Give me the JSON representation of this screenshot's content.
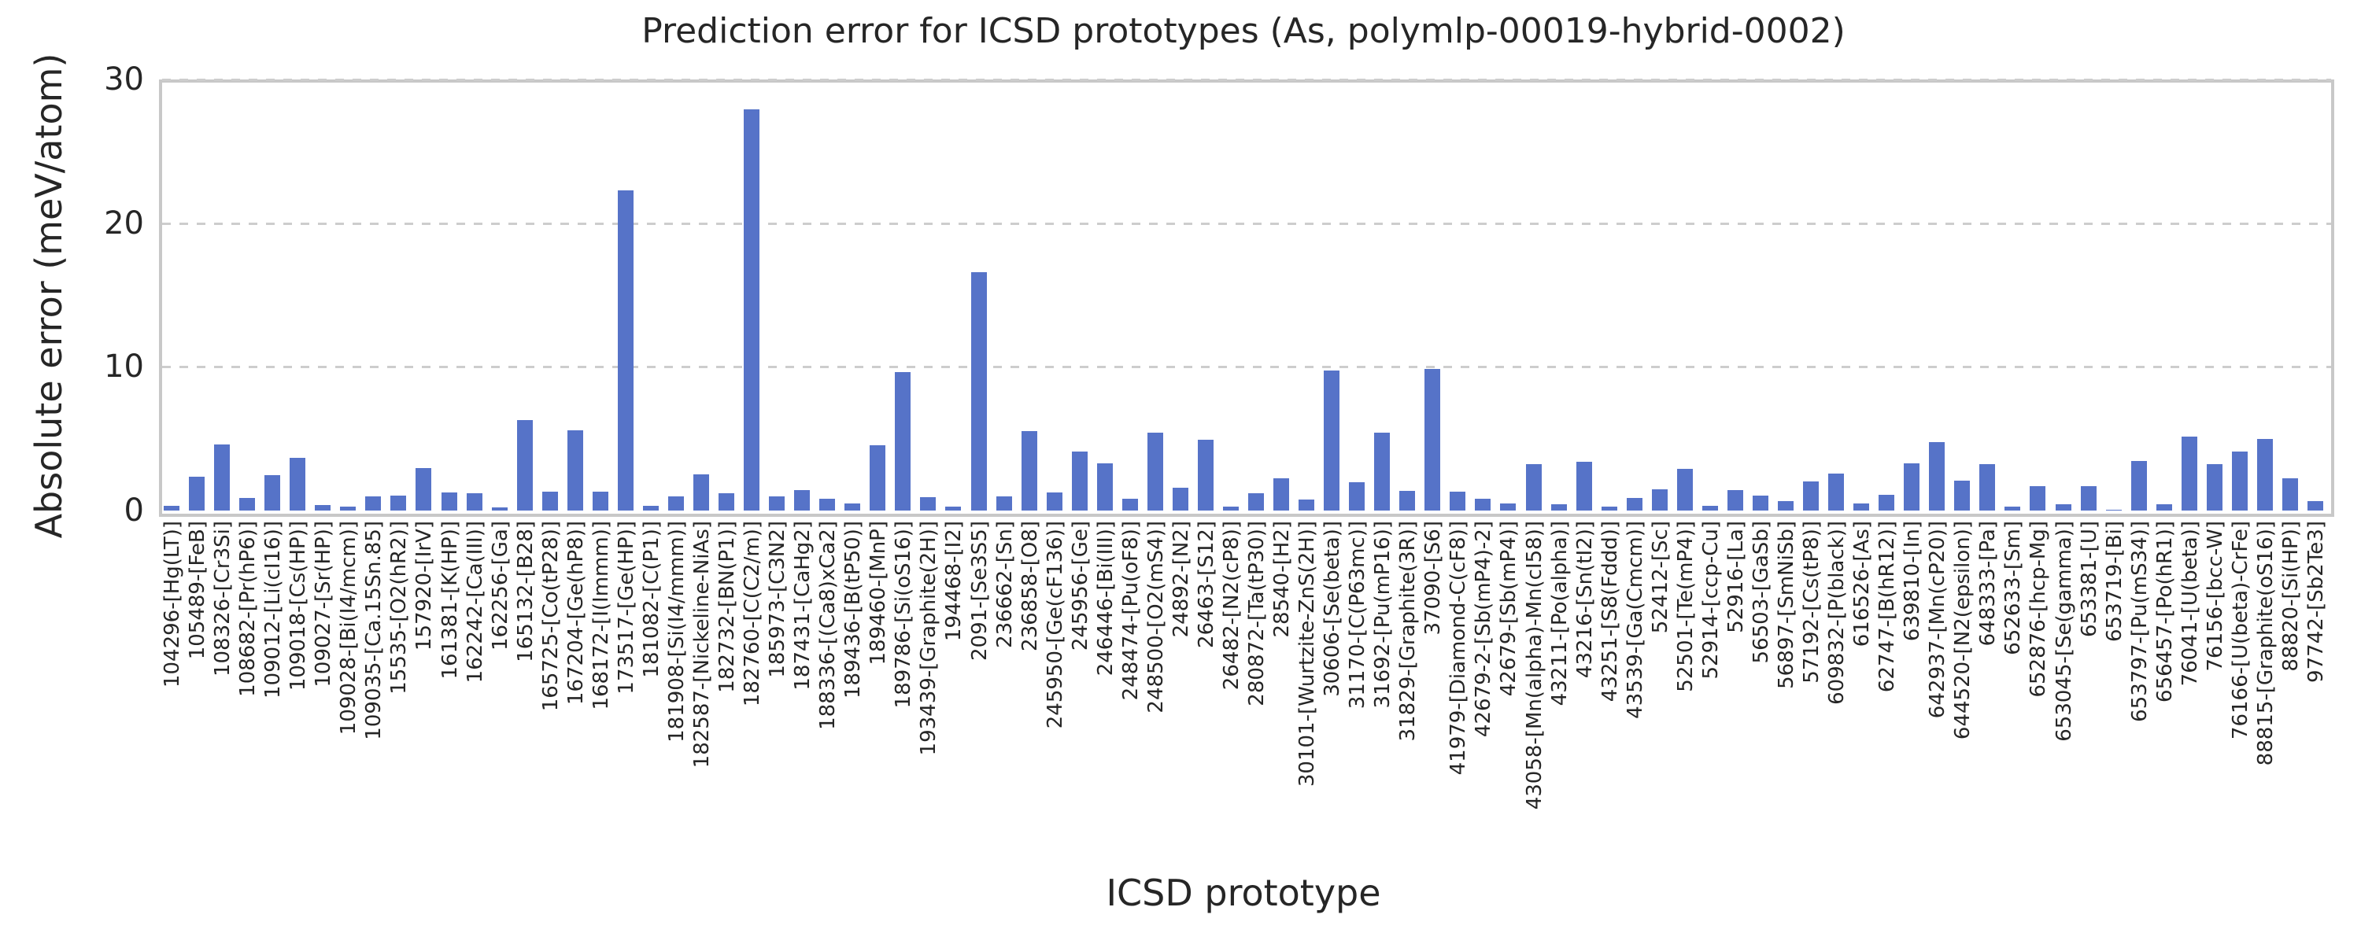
{
  "chart_data": {
    "type": "bar",
    "title": "Prediction error for ICSD prototypes (As, polymlp-00019-hybrid-0002)",
    "xlabel": "ICSD prototype",
    "ylabel": "Absolute error (meV/atom)",
    "ylim": [
      0,
      30
    ],
    "yticks": [
      0,
      10,
      20,
      30
    ],
    "grid": "horizontal dashed gridlines at y ticks",
    "legend_position": "none",
    "bar_color": "#5673c8",
    "categories": [
      "104296-[Hg(LT)]",
      "105489-[FeB]",
      "108326-[Cr3Si]",
      "108682-[Pr(hP6)]",
      "109012-[Li(cI16)]",
      "109018-[Cs(HP)]",
      "109027-[Sr(HP)]",
      "109028-[Bi(I4/mcm)]",
      "109035-[Ca.15Sn.85]",
      "15535-[O2(hR2)]",
      "157920-[IrV]",
      "161381-[K(HP)]",
      "162242-[Ca(III)]",
      "162256-[Ga]",
      "165132-[B28]",
      "165725-[Co(tP28)]",
      "167204-[Ge(hP8)]",
      "168172-[I(Immm)]",
      "173517-[Ge(HP)]",
      "181082-[C(P1)]",
      "181908-[Si(I4/mmm)]",
      "182587-[Nickeline-NiAs]",
      "182732-[BN(P1)]",
      "182760-[C(C2/m)]",
      "185973-[C3N2]",
      "187431-[CaHg2]",
      "188336-[(Ca8)xCa2]",
      "189436-[B(tP50)]",
      "189460-[MnP]",
      "189786-[Si(oS16)]",
      "193439-[Graphite(2H)]",
      "194468-[I2]",
      "2091-[Se3S5]",
      "236662-[Sn]",
      "236858-[O8]",
      "245950-[Ge(cF136)]",
      "245956-[Ge]",
      "246446-[Bi(III)]",
      "248474-[Pu(oF8)]",
      "248500-[O2(mS4)]",
      "24892-[N2]",
      "26463-[S12]",
      "26482-[N2(cP8)]",
      "280872-[Ta(tP30)]",
      "28540-[H2]",
      "30101-[Wurtzite-ZnS(2H)]",
      "30606-[Se(beta)]",
      "31170-[C(P63mc)]",
      "31692-[Pu(mP16)]",
      "31829-[Graphite(3R)]",
      "37090-[S6]",
      "41979-[Diamond-C(cF8)]",
      "42679-2-[Sb(mP4)-2]",
      "42679-[Sb(mP4)]",
      "43058-[Mn(alpha)-Mn(cI58)]",
      "43211-[Po(alpha)]",
      "43216-[Sn(tI2)]",
      "43251-[S8(Fddd)]",
      "43539-[Ga(Cmcm)]",
      "52412-[Sc]",
      "52501-[Te(mP4)]",
      "52914-[ccp-Cu]",
      "52916-[La]",
      "56503-[GaSb]",
      "56897-[SmNiSb]",
      "57192-[Cs(tP8)]",
      "609832-[P(black)]",
      "616526-[As]",
      "62747-[B(hR12)]",
      "639810-[In]",
      "642937-[Mn(cP20)]",
      "644520-[N2(epsilon)]",
      "648333-[Pa]",
      "652633-[Sm]",
      "652876-[hcp-Mg]",
      "653045-[Se(gamma)]",
      "653381-[U]",
      "653719-[Bi]",
      "653797-[Pu(mS34)]",
      "656457-[Po(hR1)]",
      "76041-[U(beta)]",
      "76156-[bcc-W]",
      "76166-[U(beta)-CrFe]",
      "88815-[Graphite(oS16)]",
      "88820-[Si(HP)]",
      "97742-[Sb2Te3]"
    ],
    "values": [
      0.35,
      2.35,
      4.6,
      0.85,
      2.45,
      3.65,
      0.4,
      0.25,
      1.0,
      1.05,
      2.95,
      1.25,
      1.2,
      0.2,
      6.3,
      1.3,
      5.6,
      1.3,
      22.3,
      0.35,
      1.0,
      2.5,
      1.2,
      27.9,
      1.0,
      1.45,
      0.8,
      0.5,
      4.55,
      9.65,
      0.95,
      0.3,
      16.6,
      1.0,
      5.55,
      1.25,
      4.1,
      3.3,
      0.8,
      5.4,
      1.6,
      4.95,
      0.3,
      1.2,
      2.25,
      0.75,
      9.75,
      1.95,
      5.4,
      1.35,
      9.85,
      1.3,
      0.8,
      0.5,
      3.25,
      0.45,
      3.4,
      0.3,
      0.85,
      1.5,
      2.9,
      0.35,
      1.4,
      1.05,
      0.65,
      2.0,
      2.6,
      0.5,
      1.1,
      3.3,
      4.75,
      2.1,
      3.25,
      0.3,
      1.7,
      0.45,
      1.7,
      0.05,
      3.45,
      0.45,
      5.15,
      3.25,
      4.1,
      5.0,
      2.25,
      0.65
    ]
  }
}
